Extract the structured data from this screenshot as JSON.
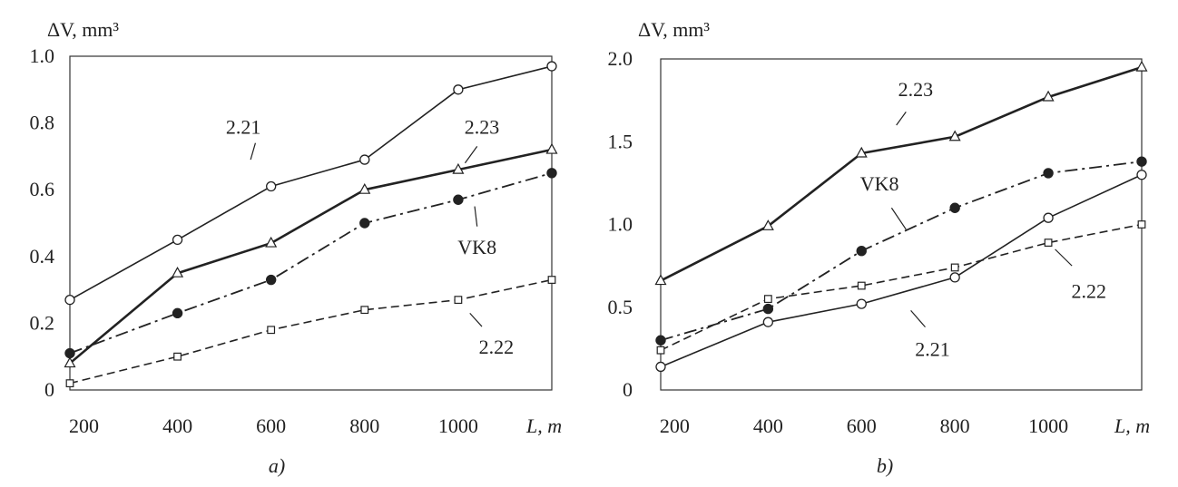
{
  "chart_data": [
    {
      "type": "line",
      "caption": "a)",
      "ylabel": "ΔV, mm³",
      "xlabel": "L, m",
      "x": [
        170,
        400,
        600,
        800,
        1000,
        1200
      ],
      "xticks": [
        "200",
        "400",
        "600",
        "800",
        "1000"
      ],
      "yticks": [
        "0",
        "0.2",
        "0.4",
        "0.6",
        "0.8",
        "1.0"
      ],
      "ytick_values": [
        0,
        0.2,
        0.4,
        0.6,
        0.8,
        1.0
      ],
      "xlim": [
        170,
        1200
      ],
      "ylim": [
        0,
        1.0
      ],
      "grid": false,
      "series": [
        {
          "name": "2.21",
          "marker": "circle-open",
          "line": "solid",
          "values": [
            0.27,
            0.45,
            0.61,
            0.69,
            0.9,
            0.97
          ],
          "label_at": [
            0.36,
            0.79
          ],
          "leader": [
            [
              0.385,
              0.74
            ],
            [
              0.375,
              0.69
            ]
          ]
        },
        {
          "name": "2.23",
          "marker": "triangle-open",
          "line": "solid-bold",
          "values": [
            0.08,
            0.35,
            0.44,
            0.6,
            0.66,
            0.72
          ],
          "label_at": [
            0.855,
            0.79
          ],
          "leader": [
            [
              0.845,
              0.73
            ],
            [
              0.82,
              0.68
            ]
          ]
        },
        {
          "name": "VK8",
          "marker": "circle-filled",
          "line": "dashdot",
          "values": [
            0.11,
            0.23,
            0.33,
            0.5,
            0.57,
            0.65
          ],
          "label_at": [
            0.845,
            0.43
          ],
          "leader": [
            [
              0.845,
              0.49
            ],
            [
              0.84,
              0.55
            ]
          ]
        },
        {
          "name": "2.22",
          "marker": "square-open",
          "line": "dashed",
          "values": [
            0.02,
            0.1,
            0.18,
            0.24,
            0.27,
            0.33
          ],
          "label_at": [
            0.885,
            0.13
          ],
          "leader": [
            [
              0.855,
              0.19
            ],
            [
              0.83,
              0.23
            ]
          ]
        }
      ]
    },
    {
      "type": "line",
      "caption": "b)",
      "ylabel": "ΔV, mm³",
      "xlabel": "L, m",
      "x": [
        170,
        400,
        600,
        800,
        1000,
        1200
      ],
      "xticks": [
        "200",
        "400",
        "600",
        "800",
        "1000"
      ],
      "yticks": [
        "0",
        "0.5",
        "1.0",
        "1.5",
        "2.0"
      ],
      "ytick_values": [
        0,
        0.5,
        1.0,
        1.5,
        2.0
      ],
      "xlim": [
        170,
        1200
      ],
      "ylim": [
        0,
        2.0
      ],
      "grid": false,
      "series": [
        {
          "name": "2.23",
          "marker": "triangle-open",
          "line": "solid-bold",
          "values": [
            0.66,
            0.99,
            1.43,
            1.53,
            1.77,
            1.95
          ],
          "label_at": [
            0.53,
            1.82
          ],
          "leader": [
            [
              0.51,
              1.68
            ],
            [
              0.49,
              1.6
            ]
          ]
        },
        {
          "name": "VK8",
          "marker": "circle-filled",
          "line": "dashdot",
          "values": [
            0.3,
            0.49,
            0.84,
            1.1,
            1.31,
            1.38
          ],
          "label_at": [
            0.455,
            1.25
          ],
          "leader": [
            [
              0.48,
              1.1
            ],
            [
              0.51,
              0.97
            ]
          ]
        },
        {
          "name": "2.22",
          "marker": "square-open",
          "line": "dashed",
          "values": [
            0.24,
            0.55,
            0.63,
            0.74,
            0.89,
            1.0
          ],
          "label_at": [
            0.89,
            0.6
          ],
          "leader": [
            [
              0.855,
              0.75
            ],
            [
              0.82,
              0.85
            ]
          ]
        },
        {
          "name": "2.21",
          "marker": "circle-open",
          "line": "solid",
          "values": [
            0.14,
            0.41,
            0.52,
            0.68,
            1.04,
            1.3
          ],
          "label_at": [
            0.565,
            0.25
          ],
          "leader": [
            [
              0.55,
              0.38
            ],
            [
              0.52,
              0.48
            ]
          ]
        }
      ]
    }
  ]
}
